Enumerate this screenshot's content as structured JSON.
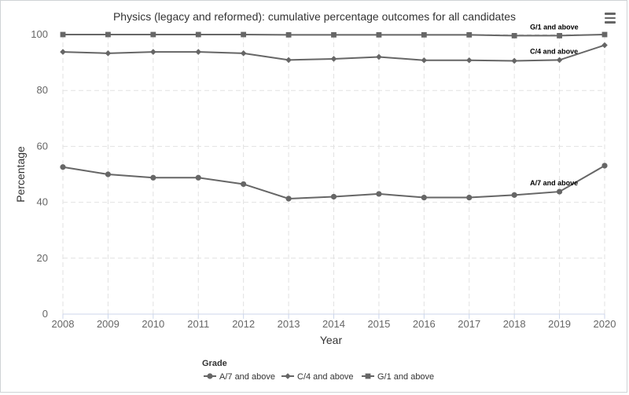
{
  "chart_data": {
    "type": "line",
    "title": "Physics (legacy and reformed): cumulative percentage outcomes for all candidates",
    "xlabel": "Year",
    "ylabel": "Percentage",
    "ylim": [
      0,
      100
    ],
    "yticks": [
      0,
      20,
      40,
      60,
      80,
      100
    ],
    "grid": true,
    "categories": [
      "2008",
      "2009",
      "2010",
      "2011",
      "2012",
      "2013",
      "2014",
      "2015",
      "2016",
      "2017",
      "2018",
      "2019",
      "2020"
    ],
    "series": [
      {
        "name": "A/7 and above",
        "marker": "circle",
        "values": [
          52.6,
          50.0,
          48.8,
          48.8,
          46.5,
          41.3,
          42.0,
          43.0,
          41.7,
          41.7,
          42.6,
          43.8,
          53.1
        ]
      },
      {
        "name": "C/4 and above",
        "marker": "diamond",
        "values": [
          93.8,
          93.3,
          93.8,
          93.8,
          93.3,
          90.9,
          91.3,
          92.0,
          90.8,
          90.8,
          90.6,
          90.9,
          96.2
        ]
      },
      {
        "name": "G/1 and above",
        "marker": "square",
        "values": [
          100,
          100,
          100,
          100,
          100,
          99.9,
          99.9,
          99.9,
          99.9,
          99.9,
          99.6,
          99.6,
          100
        ]
      }
    ],
    "legend": {
      "title": "Grade",
      "position": "bottom"
    },
    "line_color": "#666666"
  },
  "toolbar": {
    "menu_icon": "hamburger-menu-icon"
  }
}
